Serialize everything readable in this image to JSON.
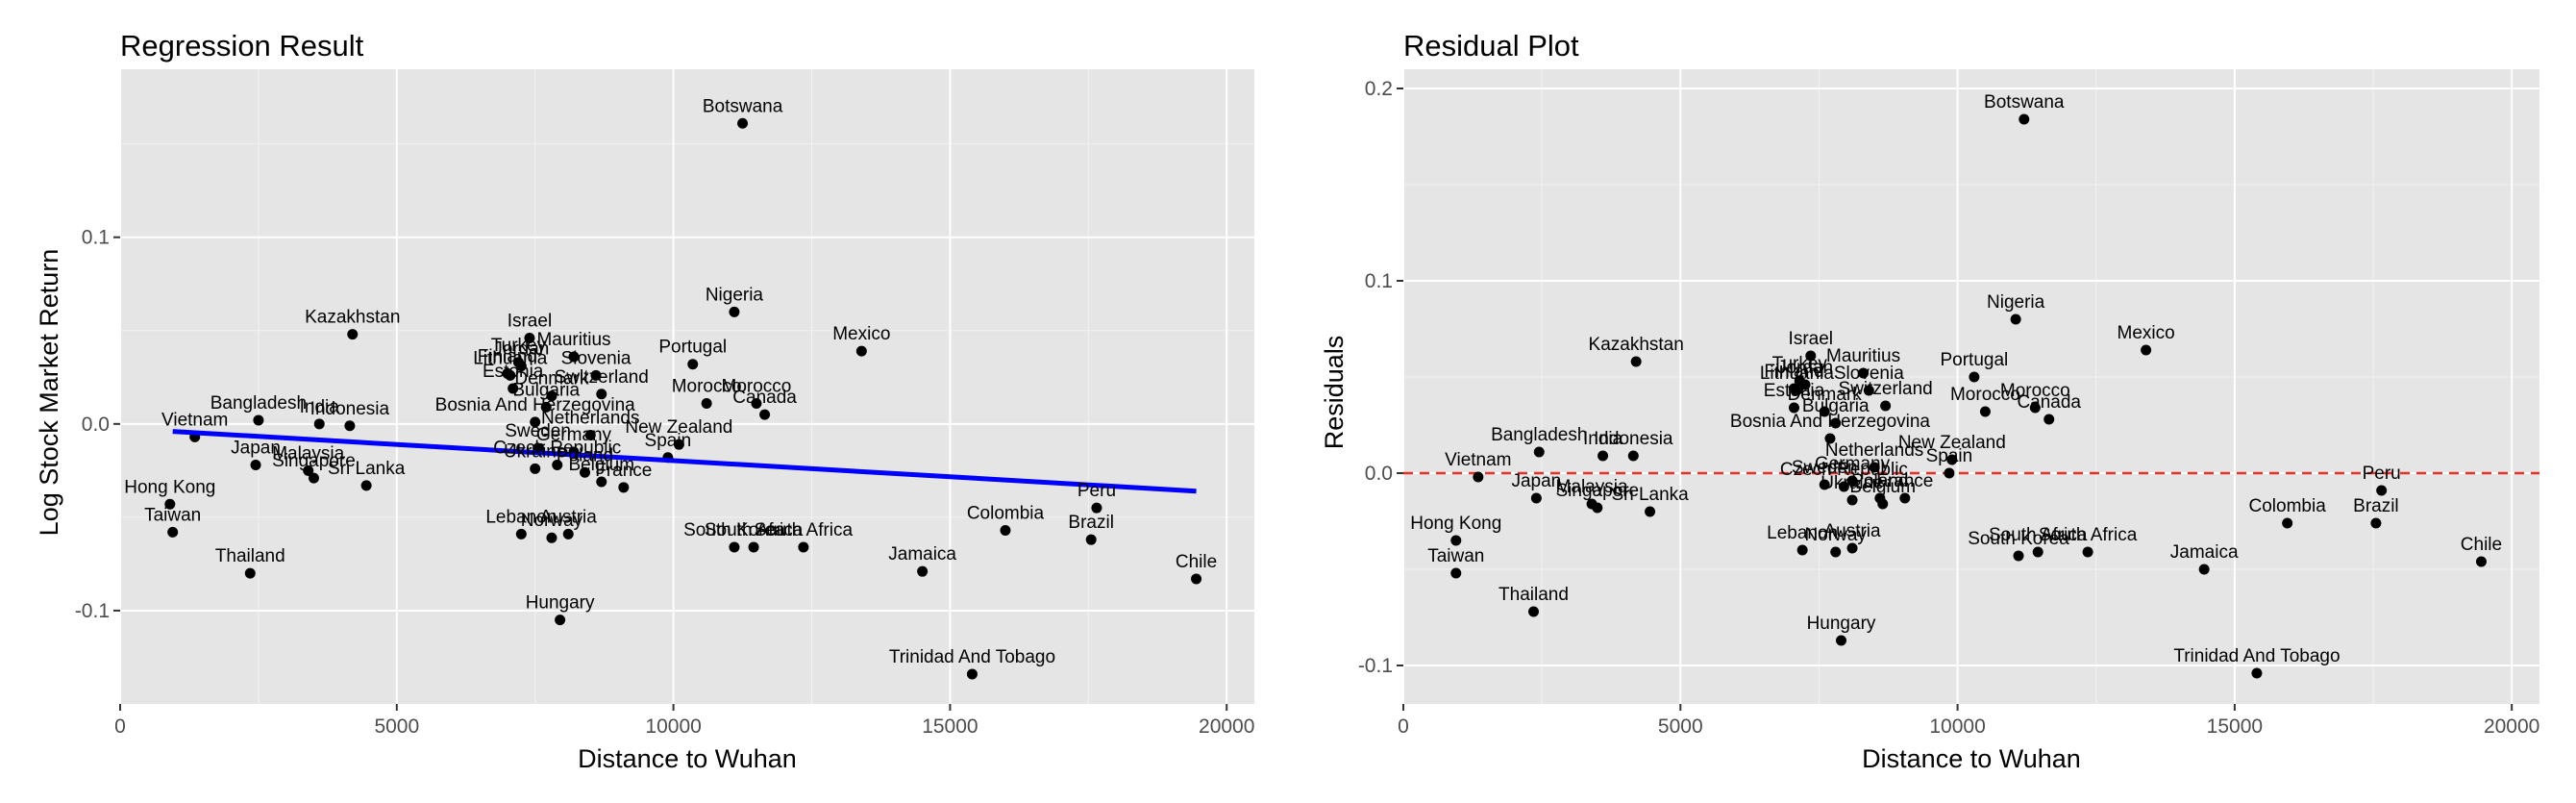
{
  "chart_data": [
    {
      "type": "scatter",
      "title": "Regression Result",
      "xlabel": "Distance to Wuhan",
      "ylabel": "Log Stock Market Return",
      "xlim": [
        0,
        20500
      ],
      "ylim": [
        -0.15,
        0.19
      ],
      "x_ticks": [
        0,
        5000,
        10000,
        15000,
        20000
      ],
      "x_tick_labels": [
        "0",
        "5000",
        "10000",
        "15000",
        "20000"
      ],
      "y_ticks": [
        -0.1,
        0,
        0.1
      ],
      "y_tick_labels": [
        "-0.1",
        "0.0",
        "0.1"
      ],
      "grid": true,
      "background": "#e5e5e5",
      "point_color": "#000000",
      "regression_line": {
        "color": "#0000ff",
        "x": [
          950,
          19450
        ],
        "y": [
          -0.004,
          -0.036
        ]
      },
      "points": [
        {
          "label": "Botswana",
          "x": 11250,
          "y": 0.161
        },
        {
          "label": "Kazakhstan",
          "x": 4200,
          "y": 0.048
        },
        {
          "label": "Israel",
          "x": 7400,
          "y": 0.046
        },
        {
          "label": "Mauritius",
          "x": 8200,
          "y": 0.036
        },
        {
          "label": "Turkey",
          "x": 7200,
          "y": 0.033
        },
        {
          "label": "Jordan",
          "x": 7250,
          "y": 0.031
        },
        {
          "label": "Slovenia",
          "x": 8600,
          "y": 0.026
        },
        {
          "label": "Finland",
          "x": 7000,
          "y": 0.027
        },
        {
          "label": "Lithuania",
          "x": 7050,
          "y": 0.026
        },
        {
          "label": "Switzerland",
          "x": 8700,
          "y": 0.016
        },
        {
          "label": "Estonia",
          "x": 7100,
          "y": 0.019
        },
        {
          "label": "Denmark",
          "x": 7800,
          "y": 0.015
        },
        {
          "label": "Bulgaria",
          "x": 7700,
          "y": 0.009
        },
        {
          "label": "Nigeria",
          "x": 11100,
          "y": 0.06
        },
        {
          "label": "Portugal",
          "x": 10350,
          "y": 0.032
        },
        {
          "label": "Mexico",
          "x": 13400,
          "y": 0.039
        },
        {
          "label": "Morocco",
          "x": 10600,
          "y": 0.011
        },
        {
          "label": "Morocco",
          "x": 11500,
          "y": 0.011
        },
        {
          "label": "Canada",
          "x": 11650,
          "y": 0.005
        },
        {
          "label": "Bangladesh",
          "x": 2500,
          "y": 0.002
        },
        {
          "label": "India",
          "x": 3600,
          "y": 0.0
        },
        {
          "label": "Indonesia",
          "x": 4150,
          "y": -0.001
        },
        {
          "label": "Vietnam",
          "x": 1350,
          "y": -0.007
        },
        {
          "label": "Bosnia And Herzegovina",
          "x": 7500,
          "y": 0.001
        },
        {
          "label": "New Zealand",
          "x": 10100,
          "y": -0.011
        },
        {
          "label": "Netherlands",
          "x": 8500,
          "y": -0.006
        },
        {
          "label": "Sweden",
          "x": 7550,
          "y": -0.013
        },
        {
          "label": "Spain",
          "x": 9900,
          "y": -0.018
        },
        {
          "label": "Germany",
          "x": 8200,
          "y": -0.015
        },
        {
          "label": "Czech Republic",
          "x": 7900,
          "y": -0.022
        },
        {
          "label": "Poland",
          "x": 8400,
          "y": -0.026
        },
        {
          "label": "France",
          "x": 9100,
          "y": -0.034
        },
        {
          "label": "Belgium",
          "x": 8700,
          "y": -0.031
        },
        {
          "label": "Ukraine",
          "x": 7500,
          "y": -0.024
        },
        {
          "label": "Japan",
          "x": 2450,
          "y": -0.022
        },
        {
          "label": "Malaysia",
          "x": 3400,
          "y": -0.025
        },
        {
          "label": "Singapore",
          "x": 3500,
          "y": -0.029
        },
        {
          "label": "Sri Lanka",
          "x": 4450,
          "y": -0.033
        },
        {
          "label": "Lebanon",
          "x": 7250,
          "y": -0.059
        },
        {
          "label": "Austria",
          "x": 8100,
          "y": -0.059
        },
        {
          "label": "Norway",
          "x": 7800,
          "y": -0.061
        },
        {
          "label": "Hong Kong",
          "x": 900,
          "y": -0.043
        },
        {
          "label": "Taiwan",
          "x": 950,
          "y": -0.058
        },
        {
          "label": "Thailand",
          "x": 2350,
          "y": -0.08
        },
        {
          "label": "Hungary",
          "x": 7950,
          "y": -0.105
        },
        {
          "label": "South Korea",
          "x": 11100,
          "y": -0.066
        },
        {
          "label": "South Africa",
          "x": 11450,
          "y": -0.066
        },
        {
          "label": "South Africa",
          "x": 12350,
          "y": -0.066
        },
        {
          "label": "Jamaica",
          "x": 14500,
          "y": -0.079
        },
        {
          "label": "Colombia",
          "x": 16000,
          "y": -0.057
        },
        {
          "label": "Peru",
          "x": 17650,
          "y": -0.045
        },
        {
          "label": "Brazil",
          "x": 17550,
          "y": -0.062
        },
        {
          "label": "Chile",
          "x": 19450,
          "y": -0.083
        },
        {
          "label": "Trinidad And Tobago",
          "x": 15400,
          "y": -0.134
        }
      ]
    },
    {
      "type": "scatter",
      "title": "Residual Plot",
      "xlabel": "Distance to Wuhan",
      "ylabel": "Residuals",
      "xlim": [
        0,
        20500
      ],
      "ylim": [
        -0.12,
        0.21
      ],
      "x_ticks": [
        0,
        5000,
        10000,
        15000,
        20000
      ],
      "x_tick_labels": [
        "0",
        "5000",
        "10000",
        "15000",
        "20000"
      ],
      "y_ticks": [
        -0.1,
        0,
        0.1,
        0.2
      ],
      "y_tick_labels": [
        "-0.1",
        "0.0",
        "0.1",
        "0.2"
      ],
      "grid": true,
      "background": "#e5e5e5",
      "point_color": "#000000",
      "zero_line": {
        "color": "#e8302a",
        "y": 0
      },
      "points": [
        {
          "label": "Botswana",
          "x": 11200,
          "y": 0.184
        },
        {
          "label": "Kazakhstan",
          "x": 4200,
          "y": 0.058
        },
        {
          "label": "Israel",
          "x": 7350,
          "y": 0.061
        },
        {
          "label": "Mauritius",
          "x": 8300,
          "y": 0.052
        },
        {
          "label": "Turkey",
          "x": 7150,
          "y": 0.048
        },
        {
          "label": "Jordan",
          "x": 7250,
          "y": 0.046
        },
        {
          "label": "Slovenia",
          "x": 8400,
          "y": 0.043
        },
        {
          "label": "Finland",
          "x": 7050,
          "y": 0.044
        },
        {
          "label": "Lithuania",
          "x": 7100,
          "y": 0.043
        },
        {
          "label": "Switzerland",
          "x": 8700,
          "y": 0.035
        },
        {
          "label": "Estonia",
          "x": 7050,
          "y": 0.034
        },
        {
          "label": "Denmark",
          "x": 7600,
          "y": 0.032
        },
        {
          "label": "Bulgaria",
          "x": 7800,
          "y": 0.026
        },
        {
          "label": "Nigeria",
          "x": 11050,
          "y": 0.08
        },
        {
          "label": "Portugal",
          "x": 10300,
          "y": 0.05
        },
        {
          "label": "Mexico",
          "x": 13400,
          "y": 0.064
        },
        {
          "label": "Morocco",
          "x": 10500,
          "y": 0.032
        },
        {
          "label": "Morocco",
          "x": 11400,
          "y": 0.034
        },
        {
          "label": "Canada",
          "x": 11650,
          "y": 0.028
        },
        {
          "label": "Bangladesh",
          "x": 2450,
          "y": 0.011
        },
        {
          "label": "India",
          "x": 3600,
          "y": 0.009
        },
        {
          "label": "Indonesia",
          "x": 4150,
          "y": 0.009
        },
        {
          "label": "Vietnam",
          "x": 1350,
          "y": -0.002
        },
        {
          "label": "Bosnia And Herzegovina",
          "x": 7700,
          "y": 0.018
        },
        {
          "label": "New Zealand",
          "x": 9900,
          "y": 0.007
        },
        {
          "label": "Netherlands",
          "x": 8500,
          "y": 0.003
        },
        {
          "label": "Sweden",
          "x": 7600,
          "y": -0.006
        },
        {
          "label": "Spain",
          "x": 9850,
          "y": 0.0
        },
        {
          "label": "Germany",
          "x": 8100,
          "y": -0.004
        },
        {
          "label": "Czech Republic",
          "x": 7950,
          "y": -0.007
        },
        {
          "label": "Poland",
          "x": 8600,
          "y": -0.013
        },
        {
          "label": "France",
          "x": 9050,
          "y": -0.013
        },
        {
          "label": "Belgium",
          "x": 8650,
          "y": -0.016
        },
        {
          "label": "Ukraine",
          "x": 8100,
          "y": -0.014
        },
        {
          "label": "Japan",
          "x": 2400,
          "y": -0.013
        },
        {
          "label": "Malaysia",
          "x": 3400,
          "y": -0.016
        },
        {
          "label": "Singapore",
          "x": 3500,
          "y": -0.018
        },
        {
          "label": "Sri Lanka",
          "x": 4450,
          "y": -0.02
        },
        {
          "label": "Lebanon",
          "x": 7200,
          "y": -0.04
        },
        {
          "label": "Austria",
          "x": 8100,
          "y": -0.039
        },
        {
          "label": "Norway",
          "x": 7800,
          "y": -0.041
        },
        {
          "label": "Hong Kong",
          "x": 950,
          "y": -0.035
        },
        {
          "label": "Taiwan",
          "x": 950,
          "y": -0.052
        },
        {
          "label": "Thailand",
          "x": 2350,
          "y": -0.072
        },
        {
          "label": "Hungary",
          "x": 7900,
          "y": -0.087
        },
        {
          "label": "South Korea",
          "x": 11100,
          "y": -0.043
        },
        {
          "label": "South Africa",
          "x": 11450,
          "y": -0.041
        },
        {
          "label": "South Africa",
          "x": 12350,
          "y": -0.041
        },
        {
          "label": "Jamaica",
          "x": 14450,
          "y": -0.05
        },
        {
          "label": "Colombia",
          "x": 15950,
          "y": -0.026
        },
        {
          "label": "Peru",
          "x": 17650,
          "y": -0.009
        },
        {
          "label": "Brazil",
          "x": 17550,
          "y": -0.026
        },
        {
          "label": "Chile",
          "x": 19450,
          "y": -0.046
        },
        {
          "label": "Trinidad And Tobago",
          "x": 15400,
          "y": -0.104
        }
      ]
    }
  ]
}
